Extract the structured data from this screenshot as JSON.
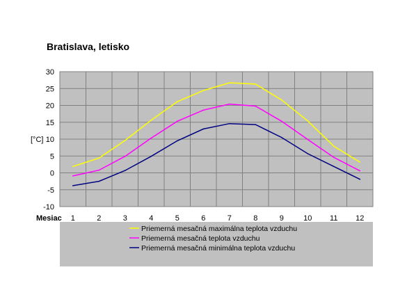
{
  "chart_data": {
    "type": "line",
    "title": "Bratislava, letisko",
    "xlabel": "Mesiac",
    "ylabel": "[°C]",
    "x": [
      "1",
      "2",
      "3",
      "4",
      "5",
      "6",
      "7",
      "8",
      "9",
      "10",
      "11",
      "12"
    ],
    "ylim": [
      -10,
      30
    ],
    "yticks": [
      "30",
      "25",
      "20",
      "15",
      "10",
      "5",
      "0",
      "-5",
      "-10"
    ],
    "grid": true,
    "legend_position": "bottom",
    "plot_background": "#C0C0C0",
    "series": [
      {
        "name": "Priemerná mesačná maximálna teplota vzduchu",
        "color": "#FFFF00",
        "values": [
          1.9,
          4.4,
          9.6,
          15.6,
          21.1,
          24.4,
          26.7,
          26.3,
          21.6,
          15.4,
          7.9,
          3.2
        ]
      },
      {
        "name": "Priemerná mesačná teplota vzduchu",
        "color": "#FF00FF",
        "values": [
          -0.9,
          0.8,
          4.9,
          10.3,
          15.3,
          18.6,
          20.4,
          19.8,
          15.3,
          9.9,
          4.6,
          0.6
        ]
      },
      {
        "name": "Priemerná mesačná minimálna teplota vzduchu",
        "color": "#000080",
        "values": [
          -3.8,
          -2.5,
          0.7,
          4.9,
          9.5,
          13.0,
          14.6,
          14.3,
          10.5,
          5.7,
          1.9,
          -1.9
        ]
      }
    ]
  }
}
